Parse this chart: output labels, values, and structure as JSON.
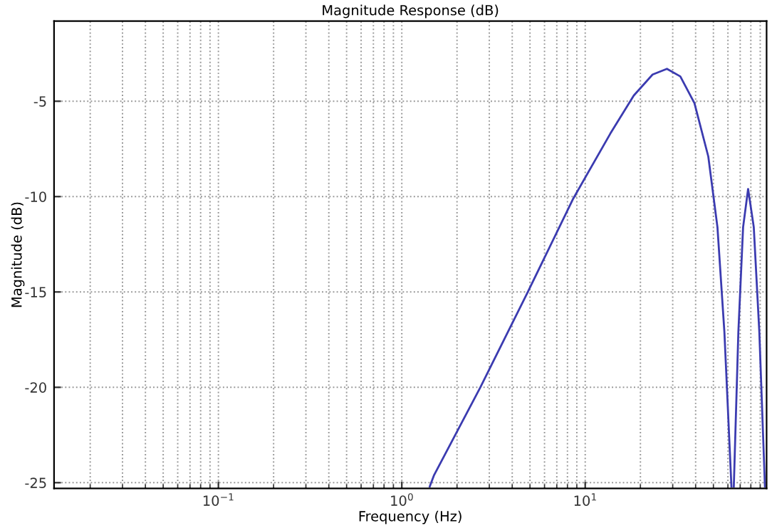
{
  "chart_data": {
    "type": "line",
    "title": "Magnitude Response (dB)",
    "xlabel": "Frequency (Hz)",
    "ylabel": "Magnitude (dB)",
    "log": "x",
    "grid": true,
    "line_style": "solid",
    "marker": "none",
    "xlim": [
      0.0127,
      97.5
    ],
    "ylim": [
      -25.3,
      -0.8
    ],
    "xticks": [
      {
        "value": 0.1,
        "label": "10$^{−1}$"
      },
      {
        "value": 1,
        "label": "10$^{0}$"
      },
      {
        "value": 10,
        "label": "10$^{1}$"
      }
    ],
    "yticks": [
      -25,
      -20,
      -15,
      -10,
      -5
    ],
    "series": [
      {
        "color": "#3b3bb0",
        "x": [
          1.42,
          1.5,
          2.68,
          4.81,
          8.61,
          13.7,
          18.4,
          23.3,
          27.9,
          33.0,
          39.4,
          46.9,
          52.6,
          57.4,
          62.7,
          64.0,
          64.6,
          68.4,
          72.6,
          77.3,
          83.0,
          89.0,
          95.5
        ],
        "values": [
          -25.2,
          -24.6,
          -20.0,
          -15.1,
          -10.1,
          -6.7,
          -4.7,
          -3.6,
          -3.3,
          -3.7,
          -5.1,
          -7.9,
          -11.6,
          -17.1,
          -25.2,
          null,
          -25.2,
          -17.1,
          -11.6,
          -9.6,
          -11.6,
          -17.1,
          -25.2
        ]
      }
    ]
  }
}
